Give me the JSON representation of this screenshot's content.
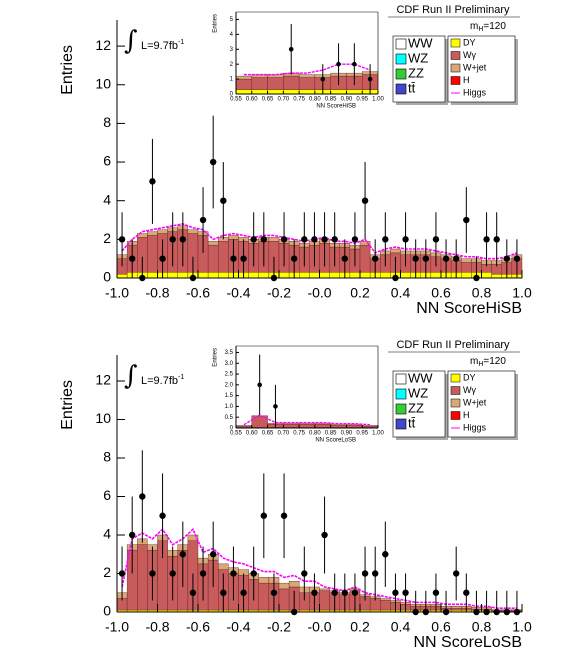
{
  "chart_data": [
    {
      "type": "histogram",
      "xlabel": "NN ScoreHiSB",
      "ylabel": "Entries",
      "experiment": "CDF Run II Preliminary",
      "mass_label": [
        "m",
        "H",
        "=120"
      ],
      "lumi": [
        "∫",
        "L=9.7fb",
        "-1"
      ],
      "bins": [
        -1,
        -0.95,
        -0.9,
        -0.85,
        -0.8,
        -0.75,
        -0.7,
        -0.65,
        -0.6,
        -0.55,
        -0.5,
        -0.45,
        -0.4,
        -0.35,
        -0.3,
        -0.25,
        -0.2,
        -0.15,
        -0.1,
        -0.05,
        0,
        0.05,
        0.1,
        0.15,
        0.2,
        0.25,
        0.3,
        0.35,
        0.4,
        0.45,
        0.5,
        0.55,
        0.6,
        0.65,
        0.7,
        0.75,
        0.8,
        0.85,
        0.9,
        0.95,
        1
      ],
      "xlim": [
        -1,
        1
      ],
      "ylim": [
        0,
        13.35
      ],
      "xticks": [
        {
          "value": -1,
          "label": "-1.0"
        },
        -0.8,
        -0.6,
        -0.4,
        -0.2,
        {
          "value": 0,
          "label": "-0.0"
        },
        0.2,
        0.4,
        0.6,
        0.8,
        {
          "value": 1,
          "label": "1.0"
        }
      ],
      "yticks": [
        0,
        2,
        4,
        6,
        8,
        10,
        12
      ],
      "series": [
        {
          "name": "DY",
          "color": "#ffff00",
          "stack": true,
          "values": [
            0.2,
            0.3,
            0.3,
            0.3,
            0.3,
            0.3,
            0.3,
            0.3,
            0.3,
            0.3,
            0.3,
            0.3,
            0.3,
            0.3,
            0.3,
            0.3,
            0.3,
            0.3,
            0.3,
            0.3,
            0.3,
            0.3,
            0.3,
            0.3,
            0.3,
            0.3,
            0.3,
            0.3,
            0.3,
            0.3,
            0.3,
            0.3,
            0.3,
            0.3,
            0.3,
            0.3,
            0.3,
            0.2,
            0.2,
            0.2
          ]
        },
        {
          "name": "Wγ",
          "color": "#c85c5c",
          "stack": true,
          "values": [
            0.8,
            1.4,
            1.8,
            1.9,
            2.0,
            2.1,
            2.2,
            2.0,
            1.9,
            1.4,
            1.6,
            1.7,
            1.6,
            1.5,
            1.6,
            1.6,
            1.5,
            1.4,
            1.3,
            1.4,
            1.5,
            1.3,
            1.3,
            1.2,
            1.4,
            0.7,
            0.9,
            1.0,
            0.9,
            0.9,
            0.9,
            0.8,
            0.7,
            0.6,
            0.5,
            0.5,
            0.4,
            0.5,
            0.6,
            0.8
          ]
        },
        {
          "name": "W+jet",
          "color": "#d8a878",
          "stack": true,
          "values": [
            0.2,
            0.2,
            0.2,
            0.2,
            0.2,
            0.2,
            0.2,
            0.2,
            0.2,
            0.2,
            0.2,
            0.2,
            0.2,
            0.2,
            0.2,
            0.2,
            0.2,
            0.2,
            0.2,
            0.2,
            0.2,
            0.2,
            0.2,
            0.2,
            0.2,
            0.2,
            0.2,
            0.2,
            0.2,
            0.2,
            0.2,
            0.2,
            0.2,
            0.2,
            0.2,
            0.2,
            0.2,
            0.2,
            0.2,
            0.2
          ]
        },
        {
          "name": "Higgs",
          "color": "#ff00ff",
          "line": true,
          "values": [
            1.4,
            2.0,
            2.4,
            2.5,
            2.6,
            2.7,
            2.8,
            2.6,
            2.5,
            2.0,
            2.2,
            2.3,
            2.2,
            2.1,
            2.2,
            2.2,
            2.1,
            2.0,
            1.9,
            2.0,
            2.1,
            1.9,
            1.9,
            1.8,
            2.0,
            1.3,
            1.5,
            1.6,
            1.5,
            1.5,
            1.5,
            1.4,
            1.3,
            1.2,
            1.1,
            1.1,
            1.0,
            1.0,
            1.1,
            1.3
          ]
        }
      ],
      "other_legend": [
        {
          "name": "WW",
          "color": "#ffffff"
        },
        {
          "name": "WZ",
          "color": "#00ffff"
        },
        {
          "name": "ZZ",
          "color": "#33cc33"
        },
        {
          "name": "tt̄",
          "color": "#4444cc"
        },
        {
          "name": "H",
          "color": "#ff0000"
        }
      ],
      "data_points": {
        "values": [
          2,
          1,
          0,
          5,
          1,
          2,
          2,
          0,
          3,
          6,
          4,
          1,
          1,
          2,
          2,
          0,
          2,
          1,
          2,
          2,
          2,
          2,
          1,
          2,
          4,
          1,
          2,
          0,
          2,
          1,
          1,
          2,
          1,
          1,
          3,
          0,
          2,
          2,
          1,
          1
        ],
        "errors": [
          1.4,
          1,
          1.1,
          2.2,
          1,
          1.4,
          1.4,
          1.1,
          1.7,
          2.4,
          2,
          1,
          1,
          1.4,
          1.4,
          1.1,
          1.4,
          1,
          1.4,
          1.4,
          1.4,
          1.4,
          1,
          1.4,
          2,
          1,
          1.4,
          1.1,
          1.4,
          1,
          1,
          1.4,
          1,
          1,
          1.7,
          1.1,
          1.4,
          1.4,
          1,
          1
        ]
      }
    },
    {
      "type": "histogram",
      "xlabel": "NN ScoreHiSB",
      "ylabel": "Entries",
      "bins": [
        0.55,
        0.6,
        0.65,
        0.7,
        0.75,
        0.8,
        0.85,
        0.9,
        0.95,
        1
      ],
      "xlim": [
        0.55,
        1
      ],
      "ylim": [
        0,
        5.5
      ],
      "xticks": [
        0.55,
        {
          "value": 0.6,
          "label": "0.60"
        },
        0.65,
        {
          "value": 0.7,
          "label": "0.70"
        },
        0.75,
        {
          "value": 0.8,
          "label": "0.80"
        },
        0.85,
        {
          "value": 0.9,
          "label": "0.90"
        },
        0.95,
        {
          "value": 1,
          "label": "1.00"
        }
      ],
      "yticks": [
        0,
        1,
        2,
        3,
        4,
        5
      ],
      "series": [
        {
          "name": "DY",
          "color": "#ffff00",
          "stack": true,
          "values": [
            0.3,
            0.3,
            0.3,
            0.3,
            0.3,
            0.3,
            0.3,
            0.3,
            0.3
          ]
        },
        {
          "name": "Wγ",
          "color": "#c85c5c",
          "stack": true,
          "values": [
            0.7,
            0.8,
            0.8,
            0.9,
            0.8,
            0.8,
            0.9,
            0.9,
            1.0
          ]
        },
        {
          "name": "W+jet",
          "color": "#d8a878",
          "stack": true,
          "values": [
            0.2,
            0.2,
            0.2,
            0.2,
            0.2,
            0.2,
            0.2,
            0.2,
            0.2
          ]
        },
        {
          "name": "Higgs",
          "color": "#ff00ff",
          "line": true,
          "values": [
            1.3,
            1.3,
            1.3,
            1.4,
            1.4,
            1.6,
            2.0,
            2.0,
            1.6
          ]
        }
      ],
      "data_points": {
        "values": [
          null,
          null,
          null,
          3,
          null,
          1,
          2,
          2,
          1
        ],
        "errors": [
          null,
          null,
          null,
          1.7,
          null,
          1,
          1.4,
          1.4,
          1
        ]
      }
    },
    {
      "type": "histogram",
      "xlabel": "NN ScoreLoSB",
      "ylabel": "Entries",
      "experiment": "CDF Run II Preliminary",
      "mass_label": [
        "m",
        "H",
        "=120"
      ],
      "lumi": [
        "∫",
        "L=9.7fb",
        "-1"
      ],
      "bins": [
        -1,
        -0.95,
        -0.9,
        -0.85,
        -0.8,
        -0.75,
        -0.7,
        -0.65,
        -0.6,
        -0.55,
        -0.5,
        -0.45,
        -0.4,
        -0.35,
        -0.3,
        -0.25,
        -0.2,
        -0.15,
        -0.1,
        -0.05,
        0,
        0.05,
        0.1,
        0.15,
        0.2,
        0.25,
        0.3,
        0.35,
        0.4,
        0.45,
        0.5,
        0.55,
        0.6,
        0.65,
        0.7,
        0.75,
        0.8,
        0.85,
        0.9,
        0.95,
        1
      ],
      "xlim": [
        -1,
        1
      ],
      "ylim": [
        0,
        13.35
      ],
      "xticks": [
        {
          "value": -1,
          "label": "-1.0"
        },
        -0.8,
        -0.6,
        -0.4,
        -0.2,
        {
          "value": 0,
          "label": "-0.0"
        },
        0.2,
        0.4,
        0.6,
        0.8,
        {
          "value": 1,
          "label": "1.0"
        }
      ],
      "yticks": [
        0,
        2,
        4,
        6,
        8,
        10,
        12
      ],
      "series": [
        {
          "name": "DY",
          "color": "#ffff00",
          "stack": true,
          "values": [
            0.1,
            0.1,
            0.1,
            0.1,
            0.1,
            0.1,
            0.1,
            0.1,
            0.1,
            0.1,
            0.1,
            0.1,
            0.1,
            0.1,
            0.1,
            0.1,
            0.1,
            0.1,
            0.1,
            0.1,
            0.1,
            0.1,
            0.1,
            0.1,
            0.1,
            0.1,
            0.1,
            0.1,
            0.1,
            0.1,
            0.1,
            0.1,
            0.1,
            0.1,
            0.1,
            0.1,
            0.1,
            0.05,
            0.05,
            0.05
          ]
        },
        {
          "name": "Wγ",
          "color": "#c85c5c",
          "stack": true,
          "values": [
            0.6,
            3.1,
            3.4,
            3.1,
            3.6,
            2.8,
            3.1,
            3.6,
            2.4,
            2.6,
            2.1,
            1.9,
            1.8,
            1.6,
            1.4,
            1.4,
            1.1,
            1.2,
            0.9,
            0.9,
            1.0,
            0.9,
            0.8,
            1.0,
            0.7,
            0.6,
            0.5,
            0.4,
            0.3,
            0.2,
            0.2,
            0.2,
            0.1,
            0.1,
            0.1,
            0.05,
            0.05,
            0.02,
            0.02,
            0.02
          ]
        },
        {
          "name": "W+jet",
          "color": "#d8a878",
          "stack": true,
          "values": [
            0.3,
            0.3,
            0.3,
            0.3,
            0.3,
            0.3,
            0.3,
            0.3,
            0.3,
            0.3,
            0.3,
            0.3,
            0.3,
            0.3,
            0.3,
            0.3,
            0.3,
            0.3,
            0.3,
            0.3,
            0.1,
            0.1,
            0.1,
            0.1,
            0.1,
            0.1,
            0.1,
            0.1,
            0.1,
            0.1,
            0.1,
            0.1,
            0.1,
            0.1,
            0.1,
            0.1,
            0.1,
            0.05,
            0.05,
            0.05
          ]
        },
        {
          "name": "Higgs",
          "color": "#ff00ff",
          "line": true,
          "values": [
            1.3,
            3.8,
            4.1,
            3.8,
            4.3,
            3.5,
            3.8,
            4.3,
            3.1,
            3.3,
            2.8,
            2.6,
            2.5,
            2.3,
            2.1,
            2.1,
            1.8,
            1.9,
            1.6,
            1.6,
            1.3,
            1.2,
            1.1,
            1.3,
            1.0,
            0.9,
            0.8,
            0.7,
            0.6,
            0.5,
            0.5,
            0.5,
            0.4,
            0.4,
            0.4,
            0.3,
            0.3,
            0.2,
            0.2,
            0.2
          ]
        }
      ],
      "other_legend": [
        {
          "name": "WW",
          "color": "#ffffff"
        },
        {
          "name": "WZ",
          "color": "#00ffff"
        },
        {
          "name": "ZZ",
          "color": "#33cc33"
        },
        {
          "name": "tt̄",
          "color": "#4444cc"
        },
        {
          "name": "H",
          "color": "#ff0000"
        }
      ],
      "data_points": {
        "values": [
          2,
          4,
          6,
          2,
          5,
          2,
          3,
          1,
          2,
          3,
          1,
          2,
          1,
          2,
          5,
          1,
          5,
          0,
          2,
          1,
          4,
          1,
          1,
          1,
          2,
          2,
          3,
          1,
          1,
          0,
          0,
          1,
          0,
          2,
          1,
          0,
          0,
          0,
          0,
          0
        ],
        "errors": [
          1.4,
          2,
          2.4,
          1.4,
          2.2,
          1.4,
          1.7,
          1,
          1.4,
          1.7,
          1,
          1.4,
          1,
          1.4,
          2.2,
          1,
          2.2,
          1.1,
          1.4,
          1,
          2,
          1,
          1,
          1,
          1.4,
          1.4,
          1.7,
          1,
          1,
          1.1,
          1.1,
          1,
          1.1,
          1.4,
          1,
          1.1,
          1.1,
          1.1,
          1.1,
          1.1
        ]
      }
    },
    {
      "type": "histogram",
      "xlabel": "NN ScoreLoSB",
      "ylabel": "Entries",
      "bins": [
        0.55,
        0.6,
        0.65,
        0.7,
        0.75,
        0.8,
        0.85,
        0.9,
        0.95,
        1
      ],
      "xlim": [
        0.55,
        1
      ],
      "ylim": [
        0,
        3.8
      ],
      "xticks": [
        0.55,
        {
          "value": 0.6,
          "label": "0.60"
        },
        0.65,
        {
          "value": 0.7,
          "label": "0.70"
        },
        0.75,
        {
          "value": 0.8,
          "label": "0.80"
        },
        0.85,
        {
          "value": 0.9,
          "label": "0.90"
        },
        0.95,
        {
          "value": 1,
          "label": "1.00"
        }
      ],
      "yticks": [
        0,
        0.5,
        {
          "value": 1,
          "label": "1.0"
        },
        1.5,
        {
          "value": 2,
          "label": "2.0"
        },
        2.5,
        {
          "value": 3,
          "label": "3.0"
        },
        3.5
      ],
      "series": [
        {
          "name": "DY",
          "color": "#ffff00",
          "stack": true,
          "values": [
            0.02,
            0.02,
            0.02,
            0.02,
            0.02,
            0.02,
            0.02,
            0.02,
            0.02
          ]
        },
        {
          "name": "Wγ",
          "color": "#c85c5c",
          "stack": true,
          "values": [
            0.05,
            0.5,
            0.15,
            0.15,
            0.15,
            0.15,
            0.1,
            0.1,
            0.05
          ]
        },
        {
          "name": "W+jet",
          "color": "#d8a878",
          "stack": true,
          "values": [
            0.05,
            0.05,
            0.05,
            0.05,
            0.05,
            0.05,
            0.05,
            0.05,
            0.05
          ]
        },
        {
          "name": "Higgs",
          "color": "#ff00ff",
          "line": true,
          "values": [
            0.15,
            0.6,
            0.25,
            0.25,
            0.25,
            0.25,
            0.2,
            0.2,
            0.15
          ]
        }
      ],
      "data_points": {
        "values": [
          null,
          2,
          1,
          null,
          null,
          null,
          null,
          null,
          null
        ],
        "errors": [
          null,
          1.4,
          1,
          null,
          null,
          null,
          null,
          null,
          null
        ]
      }
    }
  ]
}
